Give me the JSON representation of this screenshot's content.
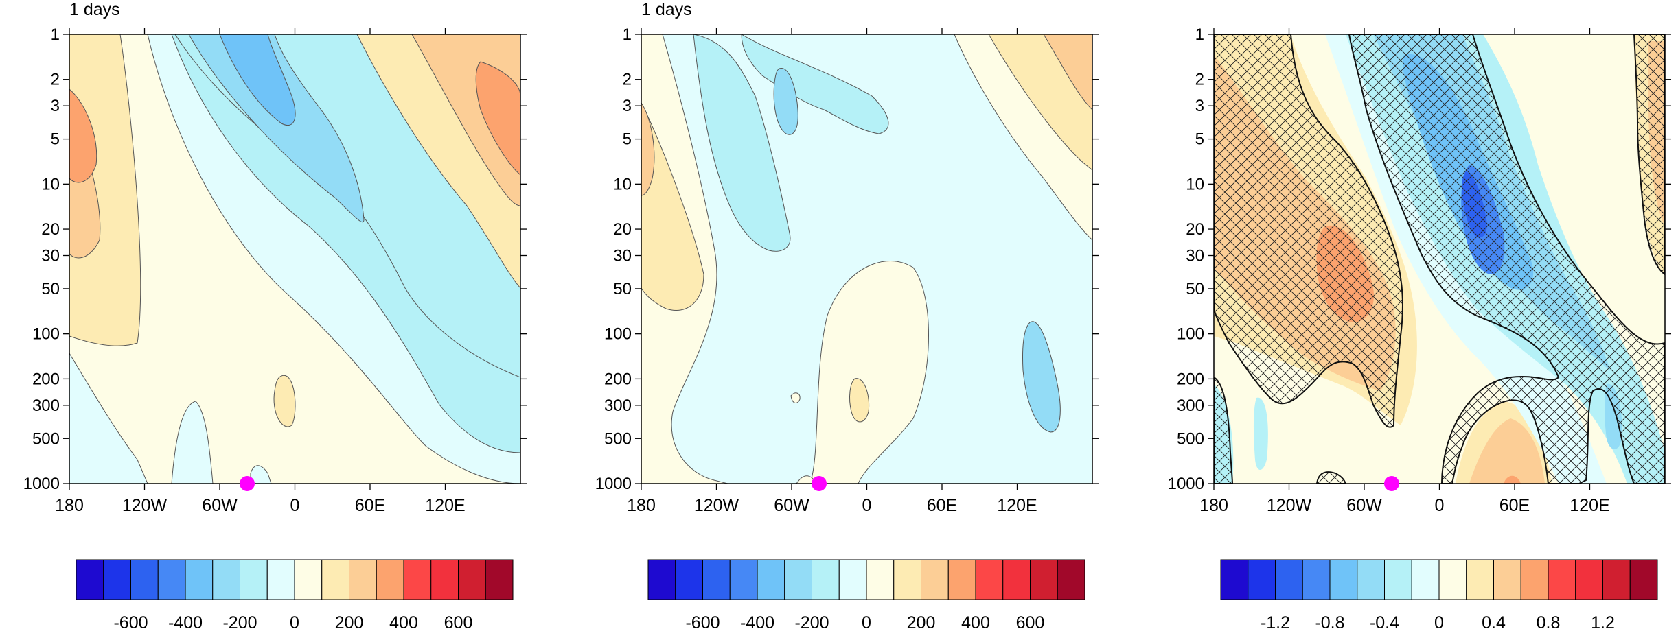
{
  "chart_data": [
    {
      "type": "heatmap",
      "panel_label": "1 days",
      "xlabel": "",
      "ylabel": "",
      "x_ticks": [
        "180",
        "120W",
        "60W",
        "0",
        "60E",
        "120E"
      ],
      "y_ticks": [
        "1",
        "2",
        "3",
        "5",
        "10",
        "20",
        "30",
        "50",
        "100",
        "200",
        "300",
        "500",
        "1000"
      ],
      "y_scale": "log",
      "ylim": [
        1000,
        1
      ],
      "contour_levels": [
        -700,
        -600,
        -500,
        -400,
        -300,
        -200,
        -100,
        0,
        100,
        200,
        300,
        400,
        500,
        600,
        700
      ],
      "colorbar_labels": [
        "-600",
        "-400",
        "-200",
        "0",
        "200",
        "400",
        "600"
      ],
      "marker": {
        "longitude": "40W",
        "level": 1000,
        "color": "#ff00ff"
      },
      "features": [
        {
          "label": "positive maximum",
          "lon": "170W",
          "level": 5,
          "value": 400
        },
        {
          "label": "negative minimum",
          "lon": "50W",
          "level": 2,
          "value": -400
        },
        {
          "label": "positive maximum",
          "lon": "160E",
          "level": 5,
          "value": 400
        }
      ]
    },
    {
      "type": "heatmap",
      "panel_label": "1 days",
      "xlabel": "",
      "ylabel": "",
      "x_ticks": [
        "180",
        "120W",
        "60W",
        "0",
        "60E",
        "120E"
      ],
      "y_ticks": [
        "1",
        "2",
        "3",
        "5",
        "10",
        "20",
        "30",
        "50",
        "100",
        "200",
        "300",
        "500",
        "1000"
      ],
      "y_scale": "log",
      "ylim": [
        1000,
        1
      ],
      "contour_levels": [
        -700,
        -600,
        -500,
        -400,
        -300,
        -200,
        -100,
        0,
        100,
        200,
        300,
        400,
        500,
        600,
        700
      ],
      "colorbar_labels": [
        "-600",
        "-400",
        "-200",
        "0",
        "200",
        "400",
        "600"
      ],
      "marker": {
        "longitude": "40W",
        "level": 1000,
        "color": "#ff00ff"
      },
      "features": [
        {
          "label": "negative minimum",
          "lon": "65W",
          "level": 3,
          "value": -300
        },
        {
          "label": "positive maximum",
          "lon": "140E",
          "level": 2,
          "value": 300
        }
      ]
    },
    {
      "type": "heatmap",
      "panel_label": "",
      "xlabel": "",
      "ylabel": "",
      "x_ticks": [
        "180",
        "120W",
        "60W",
        "0",
        "60E",
        "120E"
      ],
      "y_ticks": [
        "1",
        "2",
        "3",
        "5",
        "10",
        "20",
        "30",
        "50",
        "100",
        "200",
        "300",
        "500",
        "1000"
      ],
      "y_scale": "log",
      "ylim": [
        1000,
        1
      ],
      "contour_levels": [
        -1.4,
        -1.2,
        -1.0,
        -0.8,
        -0.6,
        -0.4,
        -0.2,
        0,
        0.2,
        0.4,
        0.6,
        0.8,
        1.0,
        1.2,
        1.4
      ],
      "colorbar_labels": [
        "-1.2",
        "-0.8",
        "-0.4",
        "0",
        "0.4",
        "0.8",
        "1.2"
      ],
      "hatching": "significant regions",
      "marker": {
        "longitude": "40W",
        "level": 1000,
        "color": "#ff00ff"
      },
      "features": [
        {
          "label": "negative minimum",
          "lon": "30E",
          "level": 20,
          "value": -1.2
        },
        {
          "label": "positive maximum",
          "lon": "80W",
          "level": 40,
          "value": 0.8
        }
      ]
    }
  ],
  "colorbar_colors": [
    "#1e0ad0",
    "#1d34ea",
    "#2d62f0",
    "#4688f5",
    "#6fc3f8",
    "#93dcf6",
    "#b5f1f7",
    "#e2fdfe",
    "#fefde6",
    "#fdebb3",
    "#fcce96",
    "#fca36e",
    "#fc4747",
    "#f2313d",
    "#d01f30",
    "#a1082a"
  ],
  "marker_color": "#ff00ff"
}
